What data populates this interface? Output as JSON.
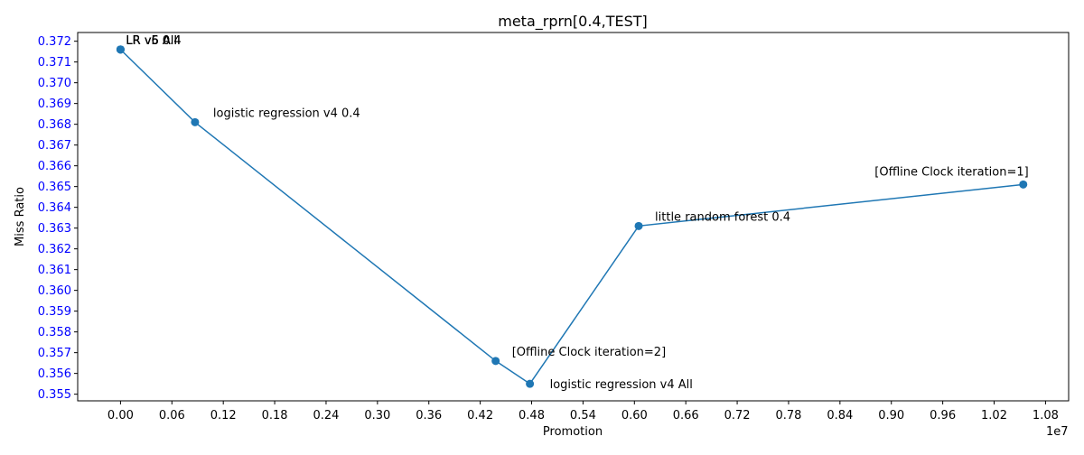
{
  "chart_data": {
    "type": "line",
    "title": "meta_rprn[0.4,TEST]",
    "xlabel": "Promotion",
    "ylabel": "Miss Ratio",
    "x_offset_label": "1e7",
    "x_tick_values": [
      0,
      600000,
      1200000,
      1800000,
      2400000,
      3000000,
      3600000,
      4200000,
      4800000,
      5400000,
      6000000,
      6600000,
      7200000,
      7800000,
      8400000,
      9000000,
      9600000,
      10200000,
      10800000
    ],
    "x_tick_labels": [
      "0.00",
      "0.06",
      "0.12",
      "0.18",
      "0.24",
      "0.30",
      "0.36",
      "0.42",
      "0.48",
      "0.54",
      "0.60",
      "0.66",
      "0.72",
      "0.78",
      "0.84",
      "0.90",
      "0.96",
      "1.02",
      "1.08"
    ],
    "y_tick_values": [
      0.355,
      0.356,
      0.357,
      0.358,
      0.359,
      0.36,
      0.361,
      0.362,
      0.363,
      0.364,
      0.365,
      0.366,
      0.367,
      0.368,
      0.369,
      0.37,
      0.371,
      0.372
    ],
    "y_tick_labels": [
      "0.355",
      "0.356",
      "0.357",
      "0.358",
      "0.359",
      "0.360",
      "0.361",
      "0.362",
      "0.363",
      "0.364",
      "0.365",
      "0.366",
      "0.367",
      "0.368",
      "0.369",
      "0.370",
      "0.371",
      "0.372"
    ],
    "xlim": [
      -500000,
      11070000
    ],
    "ylim": [
      0.35468,
      0.37242
    ],
    "grid": false,
    "colors": {
      "line": "#1f77b4",
      "ytick_text": "#0000ff",
      "text": "#000000"
    },
    "series": [
      {
        "points": [
          {
            "x": 0,
            "y": 0.3716,
            "label": "LR v5 All"
          },
          {
            "x": 0,
            "y": 0.3716,
            "label": "LR v5 0.4"
          },
          {
            "x": 0,
            "y": 0.3716,
            "label": "LR v6 All"
          },
          {
            "x": 0,
            "y": 0.3716,
            "label": "LR v6 0.4"
          },
          {
            "x": 870000,
            "y": 0.3681,
            "label": "logistic regression v4 0.4"
          },
          {
            "x": 4380000,
            "y": 0.3566,
            "label": "[Offline Clock iteration=2]"
          },
          {
            "x": 4780000,
            "y": 0.3555,
            "label": "logistic regression v4 All"
          },
          {
            "x": 6050000,
            "y": 0.3631,
            "label": "little random forest 0.4"
          },
          {
            "x": 10540000,
            "y": 0.3651,
            "label": "[Offline Clock iteration=1]"
          }
        ]
      }
    ]
  }
}
